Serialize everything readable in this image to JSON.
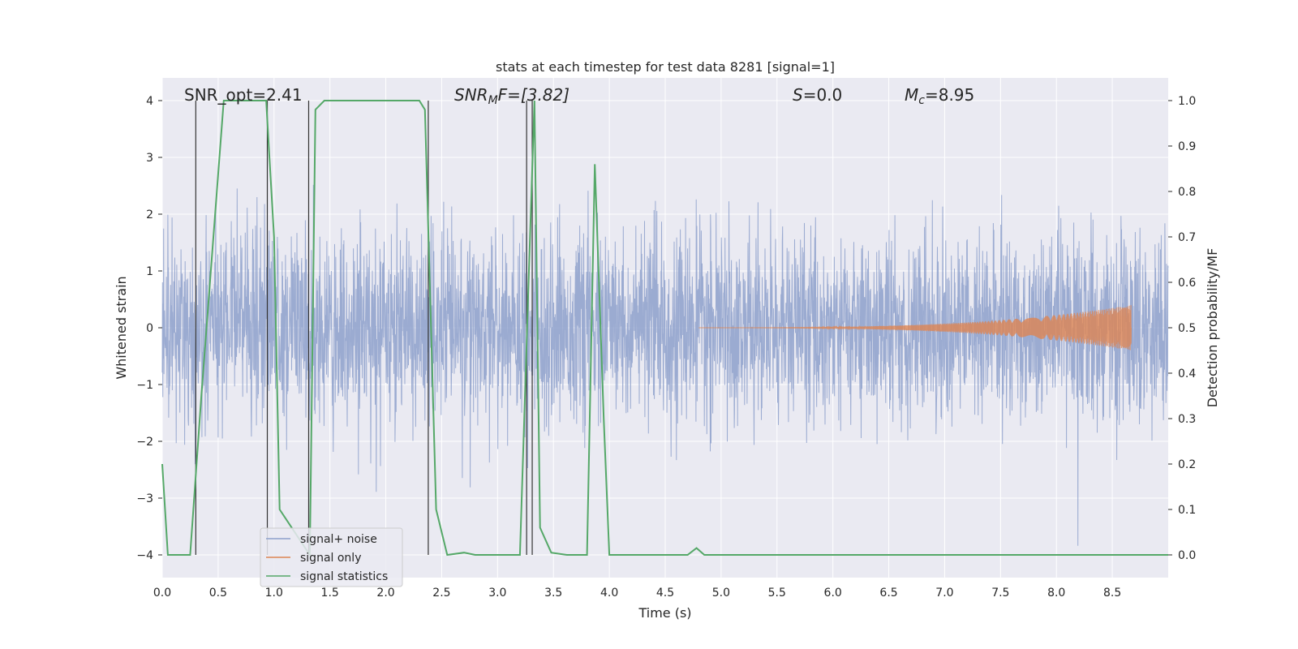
{
  "chart_data": {
    "type": "line",
    "title": "stats at each timestep for test data 8281 [signal=1]",
    "xlabel": "Time (s)",
    "ylabel": "Whitened strain",
    "ylabel_right": "Detection probability/MF",
    "xlim": [
      0.0,
      9.0
    ],
    "ylim": [
      -4.4,
      4.4
    ],
    "ylim_right": [
      -0.05,
      1.05
    ],
    "x_ticks": [
      "0.0",
      "0.5",
      "1.0",
      "1.5",
      "2.0",
      "2.5",
      "3.0",
      "3.5",
      "4.0",
      "4.5",
      "5.0",
      "5.5",
      "6.0",
      "6.5",
      "7.0",
      "7.5",
      "8.0",
      "8.5"
    ],
    "y_ticks": [
      "−4",
      "−3",
      "−2",
      "−1",
      "0",
      "1",
      "2",
      "3",
      "4"
    ],
    "y_ticks_right": [
      "0.0",
      "0.1",
      "0.2",
      "0.3",
      "0.4",
      "0.5",
      "0.6",
      "0.7",
      "0.8",
      "0.9",
      "1.0"
    ],
    "grid": true,
    "annotations": {
      "snr_opt": "SNR_opt=2.41",
      "snr_mf_name": "SNR",
      "snr_mf_sub": "M",
      "snr_mf_rest": "F=[3.82]",
      "s_name": "S",
      "s_rest": "=0.0",
      "mc_name": "M",
      "mc_sub": "c",
      "mc_rest": "=8.95"
    },
    "legend": {
      "placement": "lower-left",
      "entries": [
        "signal+ noise",
        "signal only",
        "signal statistics"
      ]
    },
    "colors": {
      "noise": "#8da0cb",
      "signal": "#dd8452",
      "stats": "#55a868",
      "vlines": "#333333",
      "background": "#eaeaf2",
      "grid": "#ffffff"
    },
    "series": [
      {
        "name": "signal+ noise",
        "kind": "noise",
        "x_range": [
          0.0,
          9.0
        ],
        "sigma": 0.8,
        "max_abs": 4.0
      },
      {
        "name": "signal only",
        "kind": "chirp",
        "x_start": 4.8,
        "x_end": 8.67,
        "final_amplitude": 0.4
      },
      {
        "name": "signal statistics",
        "axis": "right",
        "x": [
          0.0,
          0.05,
          0.25,
          0.35,
          0.55,
          0.93,
          1.0,
          1.05,
          1.32,
          1.37,
          1.45,
          1.6,
          2.3,
          2.35,
          2.45,
          2.55,
          2.7,
          2.8,
          3.2,
          3.28,
          3.33,
          3.38,
          3.48,
          3.62,
          3.8,
          3.87,
          3.95,
          4.0,
          4.4,
          4.7,
          4.78,
          4.85,
          9.0
        ],
        "y": [
          0.2,
          0.0,
          0.0,
          0.35,
          1.0,
          1.0,
          0.7,
          0.1,
          0.0,
          0.98,
          1.0,
          1.0,
          1.0,
          0.98,
          0.1,
          0.0,
          0.005,
          0.0,
          0.0,
          0.62,
          1.0,
          0.06,
          0.005,
          0.0,
          0.0,
          0.86,
          0.3,
          0.0,
          0.0,
          0.0,
          0.015,
          0.0,
          0.0
        ]
      }
    ],
    "vlines": [
      0.3,
      0.94,
      1.31,
      2.38,
      3.26,
      3.31
    ]
  }
}
